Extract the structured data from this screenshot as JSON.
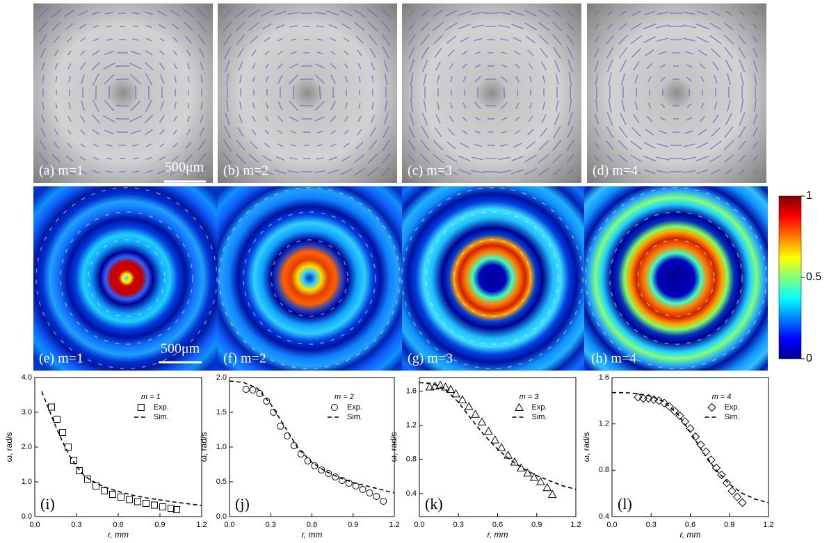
{
  "figure": {
    "photo_panels": [
      "(a) m=1",
      "(b) m=2",
      "(c) m=3",
      "(d) m=4"
    ],
    "sim_panels": [
      "(e) m=1",
      "(f) m=2",
      "(g) m=3",
      "(h) m=4"
    ],
    "scale_bar": "500μm",
    "colorbar": {
      "ylim": [
        0,
        1
      ],
      "yticks": [
        0,
        0.5,
        1
      ]
    }
  },
  "chart_data": [
    {
      "type": "line",
      "annotation": "(i)",
      "xlabel": "r, mm",
      "ylabel": "ω, rad/s",
      "legend_title": "m = 1",
      "xlim": [
        0,
        1.2
      ],
      "xticks": [
        {
          "value": 0,
          "label": "0.0"
        },
        0.3,
        0.6,
        0.9,
        1.2
      ],
      "ylim": [
        0,
        4
      ],
      "yticks": [
        {
          "value": 0,
          "label": "0.0"
        },
        {
          "value": 1,
          "label": "1.0"
        },
        {
          "value": 2,
          "label": "2.0"
        },
        {
          "value": 3,
          "label": "3.0"
        },
        {
          "value": 4,
          "label": "4.0"
        }
      ],
      "series": [
        {
          "name": "Exp.",
          "color": "#000000",
          "style": "markers",
          "marker": "square",
          "x": [
            0.12,
            0.16,
            0.2,
            0.24,
            0.28,
            0.32,
            0.38,
            0.44,
            0.5,
            0.56,
            0.62,
            0.68,
            0.74,
            0.8,
            0.86,
            0.92,
            0.98,
            1.02
          ],
          "values": [
            3.15,
            2.8,
            2.42,
            2.0,
            1.62,
            1.32,
            1.08,
            0.88,
            0.74,
            0.64,
            0.56,
            0.49,
            0.43,
            0.38,
            0.33,
            0.28,
            0.24,
            0.2
          ]
        },
        {
          "name": "Sim.",
          "color": "#000000",
          "style": "dashed",
          "x": [
            0.05,
            0.1,
            0.15,
            0.2,
            0.25,
            0.3,
            0.35,
            0.4,
            0.5,
            0.6,
            0.7,
            0.8,
            0.9,
            1.0,
            1.1,
            1.2
          ],
          "values": [
            3.6,
            3.1,
            2.6,
            2.15,
            1.75,
            1.45,
            1.2,
            1.05,
            0.85,
            0.72,
            0.62,
            0.54,
            0.48,
            0.42,
            0.37,
            0.32
          ]
        }
      ]
    },
    {
      "type": "line",
      "annotation": "(j)",
      "xlabel": "r, mm",
      "ylabel": "ω, rad/s",
      "legend_title": "m = 2",
      "xlim": [
        0,
        1.2
      ],
      "xticks": [
        {
          "value": 0,
          "label": "0.0"
        },
        0.3,
        0.6,
        0.9,
        1.2
      ],
      "ylim": [
        0,
        2
      ],
      "yticks": [
        {
          "value": 0,
          "label": "0.0"
        },
        0.5,
        {
          "value": 1,
          "label": "1.0"
        },
        1.5,
        {
          "value": 2,
          "label": "2.0"
        }
      ],
      "series": [
        {
          "name": "Exp.",
          "color": "#000000",
          "style": "markers",
          "marker": "circle",
          "x": [
            0.12,
            0.17,
            0.22,
            0.27,
            0.32,
            0.37,
            0.42,
            0.47,
            0.52,
            0.57,
            0.62,
            0.67,
            0.72,
            0.77,
            0.82,
            0.87,
            0.92,
            0.97,
            1.02,
            1.07,
            1.12
          ],
          "values": [
            1.83,
            1.82,
            1.77,
            1.66,
            1.5,
            1.3,
            1.16,
            1.02,
            0.9,
            0.8,
            0.73,
            0.67,
            0.62,
            0.57,
            0.52,
            0.48,
            0.44,
            0.39,
            0.34,
            0.29,
            0.22
          ]
        },
        {
          "name": "Sim.",
          "color": "#000000",
          "style": "dashed",
          "x": [
            0,
            0.1,
            0.2,
            0.3,
            0.4,
            0.5,
            0.6,
            0.7,
            0.8,
            0.9,
            1.0,
            1.1,
            1.2
          ],
          "values": [
            1.95,
            1.93,
            1.85,
            1.62,
            1.3,
            0.98,
            0.78,
            0.65,
            0.56,
            0.49,
            0.44,
            0.39,
            0.34
          ]
        }
      ]
    },
    {
      "type": "line",
      "annotation": "(k)",
      "xlabel": "r, mm",
      "ylabel": "ω, rad/s",
      "legend_title": "m = 3",
      "xlim": [
        0,
        1.2
      ],
      "xticks": [
        {
          "value": 0,
          "label": "0.0"
        },
        0.3,
        0.6,
        0.9,
        1.2
      ],
      "ylim": [
        0.13,
        1.76
      ],
      "yticks": [
        0.4,
        0.8,
        1.2,
        1.6
      ],
      "series": [
        {
          "name": "Exp.",
          "color": "#000000",
          "style": "markers",
          "marker": "triangle",
          "x": [
            0.08,
            0.12,
            0.16,
            0.2,
            0.24,
            0.28,
            0.33,
            0.38,
            0.43,
            0.48,
            0.53,
            0.58,
            0.63,
            0.68,
            0.73,
            0.78,
            0.83,
            0.88,
            0.93,
            0.98,
            1.02
          ],
          "values": [
            1.65,
            1.66,
            1.67,
            1.65,
            1.62,
            1.57,
            1.5,
            1.42,
            1.33,
            1.24,
            1.13,
            1.03,
            0.94,
            0.85,
            0.77,
            0.7,
            0.64,
            0.59,
            0.54,
            0.47,
            0.39
          ]
        },
        {
          "name": "Sim.",
          "color": "#000000",
          "style": "dashed",
          "x": [
            0,
            0.1,
            0.2,
            0.3,
            0.4,
            0.5,
            0.6,
            0.7,
            0.8,
            0.9,
            1.0,
            1.1,
            1.2
          ],
          "values": [
            1.7,
            1.69,
            1.62,
            1.47,
            1.27,
            1.08,
            0.92,
            0.79,
            0.69,
            0.61,
            0.55,
            0.49,
            0.45
          ]
        }
      ]
    },
    {
      "type": "line",
      "annotation": "(l)",
      "xlabel": "r, mm",
      "ylabel": "ω, rad/s",
      "legend_title": "m = 4",
      "xlim": [
        0,
        1.2
      ],
      "xticks": [
        {
          "value": 0,
          "label": "0.0"
        },
        0.3,
        0.6,
        0.9,
        1.2
      ],
      "ylim": [
        0.4,
        1.6
      ],
      "yticks": [
        0.4,
        0.8,
        1.2,
        1.6
      ],
      "series": [
        {
          "name": "Exp.",
          "color": "#000000",
          "style": "markers",
          "marker": "diamond",
          "x": [
            0.2,
            0.24,
            0.28,
            0.32,
            0.36,
            0.4,
            0.44,
            0.48,
            0.52,
            0.56,
            0.6,
            0.64,
            0.68,
            0.72,
            0.76,
            0.8,
            0.84,
            0.88,
            0.92,
            0.96,
            1.0
          ],
          "values": [
            1.43,
            1.42,
            1.42,
            1.41,
            1.4,
            1.38,
            1.35,
            1.31,
            1.27,
            1.22,
            1.16,
            1.09,
            1.02,
            0.96,
            0.89,
            0.82,
            0.76,
            0.69,
            0.62,
            0.57,
            0.52
          ]
        },
        {
          "name": "Sim.",
          "color": "#000000",
          "style": "dashed",
          "x": [
            0,
            0.1,
            0.2,
            0.3,
            0.4,
            0.5,
            0.6,
            0.7,
            0.8,
            0.9,
            1.0,
            1.1,
            1.2
          ],
          "values": [
            1.47,
            1.47,
            1.46,
            1.44,
            1.39,
            1.29,
            1.13,
            0.95,
            0.8,
            0.68,
            0.6,
            0.55,
            0.52
          ]
        }
      ]
    }
  ]
}
